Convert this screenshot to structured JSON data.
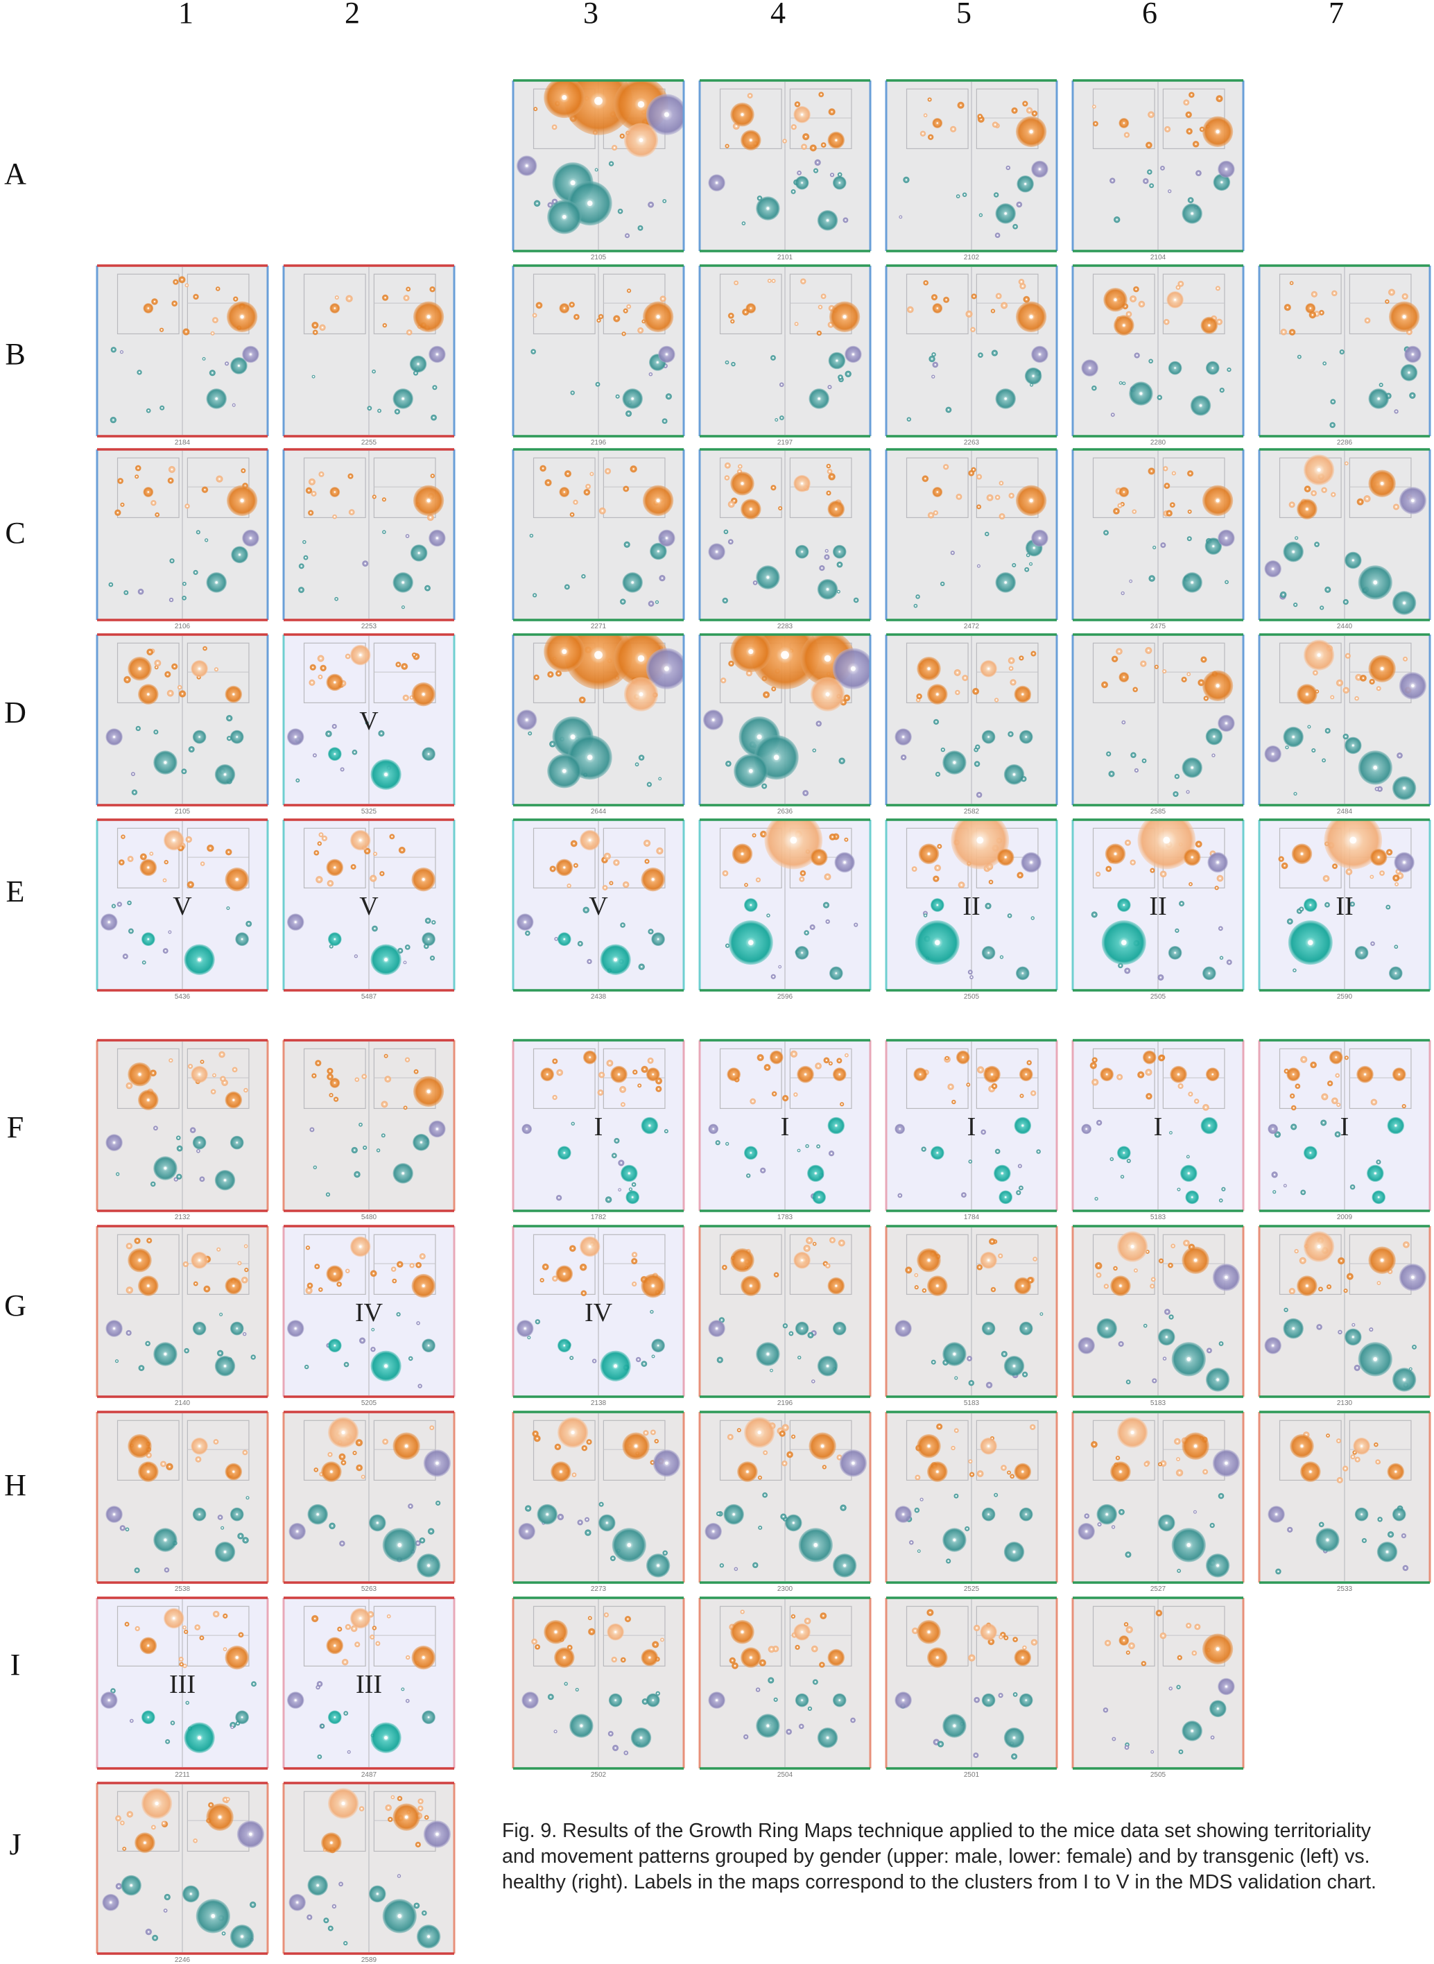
{
  "figure": {
    "column_labels": [
      "1",
      "2",
      "3",
      "4",
      "5",
      "6",
      "7"
    ],
    "row_labels": [
      "A",
      "B",
      "C",
      "D",
      "E",
      "F",
      "G",
      "H",
      "I",
      "J"
    ],
    "caption": "Fig. 9. Results of the Growth Ring Maps technique applied to the mice data set showing territoriality and movement patterns grouped by gender (upper: male, lower: female) and by transgenic (left) vs. healthy (right). Labels in the maps correspond to the clusters from I to V in the MDS validation chart."
  },
  "colors": {
    "orange": "#e8822a",
    "peach": "#f5b98a",
    "teal": "#3a9a98",
    "teal_bright": "#19aba0",
    "lavender": "#8e88b8",
    "map_bg_gray": "#e8e8e9",
    "map_bg_lavender": "#eeeefa",
    "map_bg_gray_warm": "#e9e7e7",
    "border_red": "#d04040",
    "border_green": "#2e9a58",
    "border_blue": "#6a9fd8",
    "border_cyan": "#6fcfd0",
    "border_salmon": "#e8907a",
    "border_pink": "#e8a8b8"
  },
  "maps": [
    {
      "row": "A",
      "col": 3,
      "id": "2105",
      "bg": "map_bg_gray",
      "border": "border_green",
      "side": "border_blue",
      "cluster": "",
      "style": 3
    },
    {
      "row": "A",
      "col": 4,
      "id": "2101",
      "bg": "map_bg_gray",
      "border": "border_green",
      "side": "border_blue",
      "cluster": "",
      "style": 1
    },
    {
      "row": "A",
      "col": 5,
      "id": "2102",
      "bg": "map_bg_gray",
      "border": "border_green",
      "side": "border_blue",
      "cluster": "",
      "style": 0
    },
    {
      "row": "A",
      "col": 6,
      "id": "2104",
      "bg": "map_bg_gray",
      "border": "border_green",
      "side": "border_blue",
      "cluster": "",
      "style": 0
    },
    {
      "row": "B",
      "col": 1,
      "id": "2184",
      "bg": "map_bg_gray",
      "border": "border_red",
      "side": "border_blue",
      "cluster": "",
      "style": 0
    },
    {
      "row": "B",
      "col": 2,
      "id": "2255",
      "bg": "map_bg_gray",
      "border": "border_red",
      "side": "border_blue",
      "cluster": "",
      "style": 0
    },
    {
      "row": "B",
      "col": 3,
      "id": "2196",
      "bg": "map_bg_gray",
      "border": "border_green",
      "side": "border_blue",
      "cluster": "",
      "style": 0
    },
    {
      "row": "B",
      "col": 4,
      "id": "2197",
      "bg": "map_bg_gray",
      "border": "border_green",
      "side": "border_blue",
      "cluster": "",
      "style": 0
    },
    {
      "row": "B",
      "col": 5,
      "id": "2263",
      "bg": "map_bg_gray",
      "border": "border_green",
      "side": "border_blue",
      "cluster": "",
      "style": 0
    },
    {
      "row": "B",
      "col": 6,
      "id": "2280",
      "bg": "map_bg_gray",
      "border": "border_green",
      "side": "border_blue",
      "cluster": "",
      "style": 1
    },
    {
      "row": "B",
      "col": 7,
      "id": "2286",
      "bg": "map_bg_gray",
      "border": "border_green",
      "side": "border_blue",
      "cluster": "",
      "style": 0
    },
    {
      "row": "C",
      "col": 1,
      "id": "2106",
      "bg": "map_bg_gray",
      "border": "border_red",
      "side": "border_blue",
      "cluster": "",
      "style": 0
    },
    {
      "row": "C",
      "col": 2,
      "id": "2253",
      "bg": "map_bg_gray",
      "border": "border_red",
      "side": "border_blue",
      "cluster": "",
      "style": 0
    },
    {
      "row": "C",
      "col": 3,
      "id": "2271",
      "bg": "map_bg_gray",
      "border": "border_green",
      "side": "border_blue",
      "cluster": "",
      "style": 0
    },
    {
      "row": "C",
      "col": 4,
      "id": "2283",
      "bg": "map_bg_gray",
      "border": "border_green",
      "side": "border_blue",
      "cluster": "",
      "style": 1
    },
    {
      "row": "C",
      "col": 5,
      "id": "2472",
      "bg": "map_bg_gray",
      "border": "border_green",
      "side": "border_blue",
      "cluster": "",
      "style": 0
    },
    {
      "row": "C",
      "col": 6,
      "id": "2475",
      "bg": "map_bg_gray",
      "border": "border_green",
      "side": "border_blue",
      "cluster": "",
      "style": 0
    },
    {
      "row": "C",
      "col": 7,
      "id": "2440",
      "bg": "map_bg_gray",
      "border": "border_green",
      "side": "border_blue",
      "cluster": "",
      "style": 2
    },
    {
      "row": "D",
      "col": 1,
      "id": "2105",
      "bg": "map_bg_gray",
      "border": "border_red",
      "side": "border_blue",
      "cluster": "",
      "style": 1
    },
    {
      "row": "D",
      "col": 2,
      "id": "5325",
      "bg": "map_bg_lavender",
      "border": "border_red",
      "side": "border_cyan",
      "cluster": "V",
      "style": 4
    },
    {
      "row": "D",
      "col": 3,
      "id": "2644",
      "bg": "map_bg_gray",
      "border": "border_green",
      "side": "border_blue",
      "cluster": "",
      "style": 3
    },
    {
      "row": "D",
      "col": 4,
      "id": "2636",
      "bg": "map_bg_gray",
      "border": "border_green",
      "side": "border_blue",
      "cluster": "",
      "style": 3
    },
    {
      "row": "D",
      "col": 5,
      "id": "2582",
      "bg": "map_bg_gray",
      "border": "border_green",
      "side": "border_blue",
      "cluster": "",
      "style": 1
    },
    {
      "row": "D",
      "col": 6,
      "id": "2585",
      "bg": "map_bg_gray",
      "border": "border_green",
      "side": "border_blue",
      "cluster": "",
      "style": 0
    },
    {
      "row": "D",
      "col": 7,
      "id": "2484",
      "bg": "map_bg_gray",
      "border": "border_green",
      "side": "border_blue",
      "cluster": "",
      "style": 2
    },
    {
      "row": "E",
      "col": 1,
      "id": "5436",
      "bg": "map_bg_lavender",
      "border": "border_red",
      "side": "border_cyan",
      "cluster": "V",
      "style": 4
    },
    {
      "row": "E",
      "col": 2,
      "id": "5487",
      "bg": "map_bg_lavender",
      "border": "border_red",
      "side": "border_cyan",
      "cluster": "V",
      "style": 4
    },
    {
      "row": "E",
      "col": 3,
      "id": "2438",
      "bg": "map_bg_lavender",
      "border": "border_green",
      "side": "border_cyan",
      "cluster": "V",
      "style": 4
    },
    {
      "row": "E",
      "col": 4,
      "id": "2596",
      "bg": "map_bg_lavender",
      "border": "border_green",
      "side": "border_cyan",
      "cluster": "",
      "style": 5
    },
    {
      "row": "E",
      "col": 5,
      "id": "2505",
      "bg": "map_bg_lavender",
      "border": "border_green",
      "side": "border_cyan",
      "cluster": "II",
      "style": 5
    },
    {
      "row": "E",
      "col": 6,
      "id": "2505",
      "bg": "map_bg_lavender",
      "border": "border_green",
      "side": "border_cyan",
      "cluster": "II",
      "style": 5
    },
    {
      "row": "E",
      "col": 7,
      "id": "2590",
      "bg": "map_bg_lavender",
      "border": "border_green",
      "side": "border_cyan",
      "cluster": "II",
      "style": 5
    },
    {
      "row": "F",
      "col": 1,
      "id": "2132",
      "bg": "map_bg_gray_warm",
      "border": "border_red",
      "side": "border_salmon",
      "cluster": "",
      "style": 1
    },
    {
      "row": "F",
      "col": 2,
      "id": "5480",
      "bg": "map_bg_gray_warm",
      "border": "border_red",
      "side": "border_salmon",
      "cluster": "",
      "style": 0
    },
    {
      "row": "F",
      "col": 3,
      "id": "1782",
      "bg": "map_bg_lavender",
      "border": "border_green",
      "side": "border_pink",
      "cluster": "I",
      "style": 6
    },
    {
      "row": "F",
      "col": 4,
      "id": "1783",
      "bg": "map_bg_lavender",
      "border": "border_green",
      "side": "border_pink",
      "cluster": "I",
      "style": 6
    },
    {
      "row": "F",
      "col": 5,
      "id": "1784",
      "bg": "map_bg_lavender",
      "border": "border_green",
      "side": "border_pink",
      "cluster": "I",
      "style": 6
    },
    {
      "row": "F",
      "col": 6,
      "id": "5183",
      "bg": "map_bg_lavender",
      "border": "border_green",
      "side": "border_pink",
      "cluster": "I",
      "style": 6
    },
    {
      "row": "F",
      "col": 7,
      "id": "2009",
      "bg": "map_bg_lavender",
      "border": "border_green",
      "side": "border_pink",
      "cluster": "I",
      "style": 6
    },
    {
      "row": "G",
      "col": 1,
      "id": "2140",
      "bg": "map_bg_gray_warm",
      "border": "border_red",
      "side": "border_salmon",
      "cluster": "",
      "style": 1
    },
    {
      "row": "G",
      "col": 2,
      "id": "5205",
      "bg": "map_bg_lavender",
      "border": "border_red",
      "side": "border_pink",
      "cluster": "IV",
      "style": 4
    },
    {
      "row": "G",
      "col": 3,
      "id": "2138",
      "bg": "map_bg_lavender",
      "border": "border_green",
      "side": "border_pink",
      "cluster": "IV",
      "style": 4
    },
    {
      "row": "G",
      "col": 4,
      "id": "2196",
      "bg": "map_bg_gray_warm",
      "border": "border_green",
      "side": "border_salmon",
      "cluster": "",
      "style": 1
    },
    {
      "row": "G",
      "col": 5,
      "id": "5183",
      "bg": "map_bg_gray_warm",
      "border": "border_green",
      "side": "border_salmon",
      "cluster": "",
      "style": 1
    },
    {
      "row": "G",
      "col": 6,
      "id": "5183",
      "bg": "map_bg_gray_warm",
      "border": "border_green",
      "side": "border_salmon",
      "cluster": "",
      "style": 2
    },
    {
      "row": "G",
      "col": 7,
      "id": "2130",
      "bg": "map_bg_gray_warm",
      "border": "border_green",
      "side": "border_salmon",
      "cluster": "",
      "style": 2
    },
    {
      "row": "H",
      "col": 1,
      "id": "2538",
      "bg": "map_bg_gray_warm",
      "border": "border_red",
      "side": "border_salmon",
      "cluster": "",
      "style": 1
    },
    {
      "row": "H",
      "col": 2,
      "id": "5263",
      "bg": "map_bg_gray_warm",
      "border": "border_red",
      "side": "border_salmon",
      "cluster": "",
      "style": 2
    },
    {
      "row": "H",
      "col": 3,
      "id": "2273",
      "bg": "map_bg_gray_warm",
      "border": "border_green",
      "side": "border_salmon",
      "cluster": "",
      "style": 2
    },
    {
      "row": "H",
      "col": 4,
      "id": "2300",
      "bg": "map_bg_gray_warm",
      "border": "border_green",
      "side": "border_salmon",
      "cluster": "",
      "style": 2
    },
    {
      "row": "H",
      "col": 5,
      "id": "2525",
      "bg": "map_bg_gray_warm",
      "border": "border_green",
      "side": "border_salmon",
      "cluster": "",
      "style": 1
    },
    {
      "row": "H",
      "col": 6,
      "id": "2527",
      "bg": "map_bg_gray_warm",
      "border": "border_green",
      "side": "border_salmon",
      "cluster": "",
      "style": 2
    },
    {
      "row": "H",
      "col": 7,
      "id": "2533",
      "bg": "map_bg_gray_warm",
      "border": "border_green",
      "side": "border_salmon",
      "cluster": "",
      "style": 1
    },
    {
      "row": "I",
      "col": 1,
      "id": "2211",
      "bg": "map_bg_lavender",
      "border": "border_red",
      "side": "border_pink",
      "cluster": "III",
      "style": 4
    },
    {
      "row": "I",
      "col": 2,
      "id": "2487",
      "bg": "map_bg_lavender",
      "border": "border_red",
      "side": "border_pink",
      "cluster": "III",
      "style": 4
    },
    {
      "row": "I",
      "col": 3,
      "id": "2502",
      "bg": "map_bg_gray_warm",
      "border": "border_green",
      "side": "border_salmon",
      "cluster": "",
      "style": 1
    },
    {
      "row": "I",
      "col": 4,
      "id": "2504",
      "bg": "map_bg_gray_warm",
      "border": "border_green",
      "side": "border_salmon",
      "cluster": "",
      "style": 1
    },
    {
      "row": "I",
      "col": 5,
      "id": "2501",
      "bg": "map_bg_gray_warm",
      "border": "border_green",
      "side": "border_salmon",
      "cluster": "",
      "style": 1
    },
    {
      "row": "I",
      "col": 6,
      "id": "2505",
      "bg": "map_bg_gray_warm",
      "border": "border_green",
      "side": "border_salmon",
      "cluster": "",
      "style": 0
    },
    {
      "row": "J",
      "col": 1,
      "id": "2246",
      "bg": "map_bg_gray_warm",
      "border": "border_red",
      "side": "border_salmon",
      "cluster": "",
      "style": 2
    },
    {
      "row": "J",
      "col": 2,
      "id": "2589",
      "bg": "map_bg_gray_warm",
      "border": "border_red",
      "side": "border_salmon",
      "cluster": "",
      "style": 2
    }
  ]
}
